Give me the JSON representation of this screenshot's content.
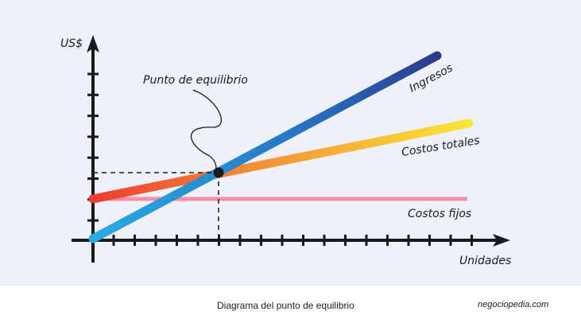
{
  "chart_data": {
    "type": "line",
    "title": "",
    "xlabel": "Unidades",
    "ylabel": "US$",
    "series": [
      {
        "name": "Ingresos",
        "color_start": "#29abe2",
        "color_end": "#2e3a8c"
      },
      {
        "name": "Costos totales",
        "color_start": "#ee3b34",
        "color_end": "#f9e63a"
      },
      {
        "name": "Costos fijos",
        "color": "#f58ea0"
      }
    ],
    "annotation": "Punto de equilibrio",
    "grid": false
  },
  "caption": "Diagrama del punto de equilibrio",
  "brand": "negociopedia.com"
}
